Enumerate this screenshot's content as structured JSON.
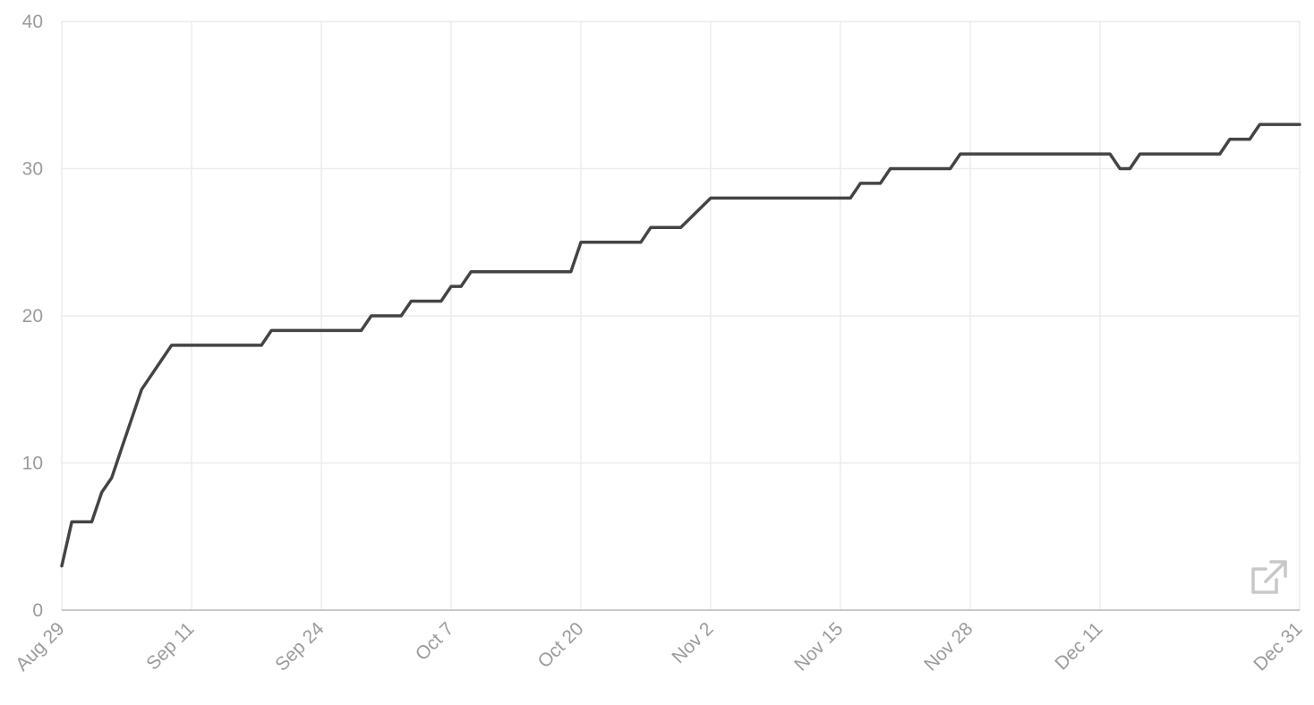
{
  "chart_data": {
    "type": "line",
    "title": "",
    "xlabel": "",
    "ylabel": "",
    "ylim": [
      0,
      40
    ],
    "xlim": [
      "2023-08-29",
      "2023-12-31"
    ],
    "y_ticks": [
      0,
      10,
      20,
      30,
      40
    ],
    "x_ticks": [
      {
        "date": "2023-08-29",
        "label": "Aug 29"
      },
      {
        "date": "2023-09-11",
        "label": "Sep 11"
      },
      {
        "date": "2023-09-24",
        "label": "Sep 24"
      },
      {
        "date": "2023-10-07",
        "label": "Oct 7"
      },
      {
        "date": "2023-10-20",
        "label": "Oct 20"
      },
      {
        "date": "2023-11-02",
        "label": "Nov 2"
      },
      {
        "date": "2023-11-15",
        "label": "Nov 15"
      },
      {
        "date": "2023-11-28",
        "label": "Nov 28"
      },
      {
        "date": "2023-12-11",
        "label": "Dec 11"
      },
      {
        "date": "2023-12-31",
        "label": "Dec 31"
      }
    ],
    "grid": true,
    "series": [
      {
        "color": "#444444",
        "points": [
          [
            "2023-08-29",
            3
          ],
          [
            "2023-08-30",
            6
          ],
          [
            "2023-09-01",
            6
          ],
          [
            "2023-09-02",
            8
          ],
          [
            "2023-09-03",
            9
          ],
          [
            "2023-09-04",
            11
          ],
          [
            "2023-09-05",
            13
          ],
          [
            "2023-09-06",
            15
          ],
          [
            "2023-09-07",
            16
          ],
          [
            "2023-09-08",
            17
          ],
          [
            "2023-09-09",
            18
          ],
          [
            "2023-09-18",
            18
          ],
          [
            "2023-09-19",
            19
          ],
          [
            "2023-09-28",
            19
          ],
          [
            "2023-09-29",
            20
          ],
          [
            "2023-10-02",
            20
          ],
          [
            "2023-10-03",
            21
          ],
          [
            "2023-10-06",
            21
          ],
          [
            "2023-10-07",
            22
          ],
          [
            "2023-10-08",
            22
          ],
          [
            "2023-10-09",
            23
          ],
          [
            "2023-10-19",
            23
          ],
          [
            "2023-10-20",
            25
          ],
          [
            "2023-10-26",
            25
          ],
          [
            "2023-10-27",
            26
          ],
          [
            "2023-10-30",
            26
          ],
          [
            "2023-11-02",
            28
          ],
          [
            "2023-11-16",
            28
          ],
          [
            "2023-11-17",
            29
          ],
          [
            "2023-11-19",
            29
          ],
          [
            "2023-11-20",
            30
          ],
          [
            "2023-11-26",
            30
          ],
          [
            "2023-11-27",
            31
          ],
          [
            "2023-12-12",
            31
          ],
          [
            "2023-12-13",
            30
          ],
          [
            "2023-12-14",
            30
          ],
          [
            "2023-12-15",
            31
          ],
          [
            "2023-12-23",
            31
          ],
          [
            "2023-12-24",
            32
          ],
          [
            "2023-12-26",
            32
          ],
          [
            "2023-12-27",
            33
          ],
          [
            "2023-12-31",
            33
          ]
        ]
      }
    ]
  },
  "controls": {
    "open_icon": "external-link-icon",
    "icon_color": "#c8c8c8"
  }
}
